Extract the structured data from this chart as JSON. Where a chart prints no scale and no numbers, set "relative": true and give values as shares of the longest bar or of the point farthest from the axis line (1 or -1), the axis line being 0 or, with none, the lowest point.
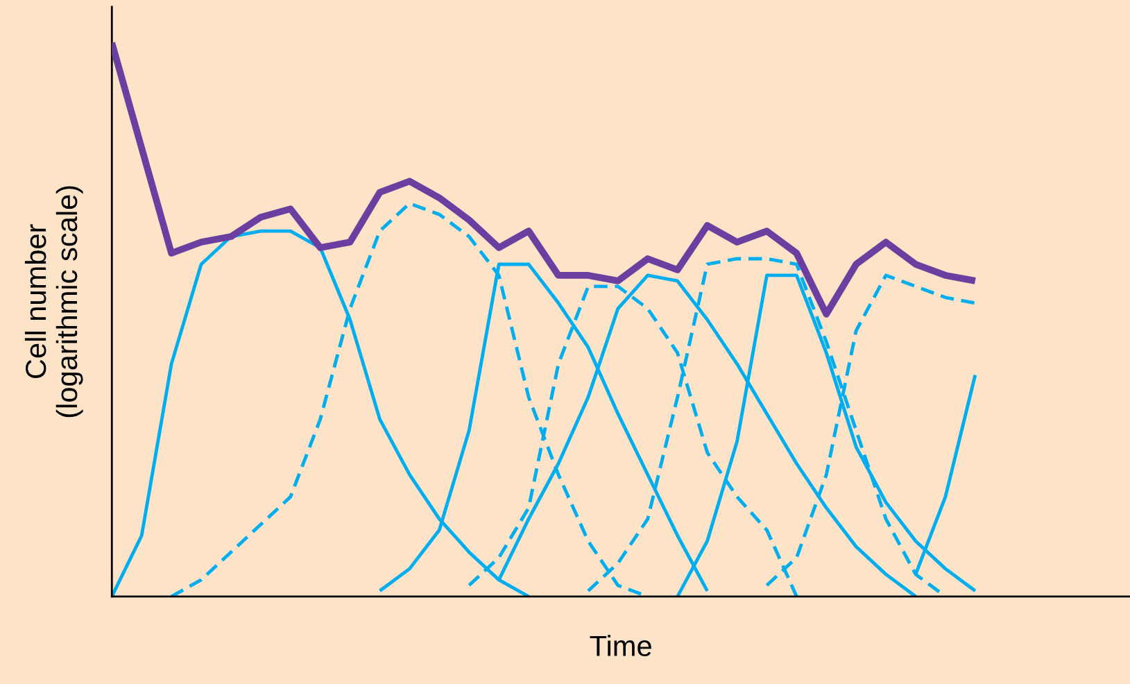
{
  "chart_data": {
    "type": "line",
    "relative": true,
    "xlabel": "Time",
    "ylabel": "Cell number\n(logarithmic scale)",
    "legend": false,
    "marker": "none",
    "categories": [
      null,
      null,
      null,
      null,
      null,
      null,
      null,
      null,
      null,
      null,
      null,
      null,
      null,
      null,
      null,
      null,
      null,
      null,
      null,
      null,
      null,
      null,
      null,
      null,
      null,
      null,
      null,
      null,
      null,
      null,
      null,
      null,
      null,
      null,
      null
    ],
    "series": [
      {
        "color": "#6a3fa0",
        "line_style": "solid",
        "values": [
          1.0,
          0.81,
          0.62,
          0.64,
          0.65,
          0.685,
          0.7,
          0.63,
          0.64,
          0.73,
          0.75,
          0.72,
          0.68,
          0.63,
          0.66,
          0.58,
          0.58,
          0.57,
          0.61,
          0.59,
          0.67,
          0.64,
          0.66,
          0.62,
          0.51,
          0.6,
          0.64,
          0.6,
          0.58,
          0.57,
          null,
          null,
          null,
          null,
          null
        ]
      },
      {
        "color": "#00aeef",
        "line_style": "solid",
        "values": [
          0,
          0.11,
          0.42,
          0.6,
          0.65,
          0.66,
          0.66,
          0.63,
          0.5,
          0.32,
          0.22,
          0.14,
          0.08,
          0.03,
          0,
          null,
          null,
          null,
          null,
          null,
          null,
          null,
          null,
          null,
          null,
          null,
          null,
          null,
          null,
          null,
          null,
          null,
          null,
          null,
          null
        ]
      },
      {
        "color": "#00aeef",
        "line_style": "dashed",
        "values": [
          null,
          null,
          0,
          0.03,
          0.08,
          0.13,
          0.18,
          0.32,
          0.52,
          0.66,
          0.71,
          0.69,
          0.65,
          0.58,
          0.36,
          0.22,
          0.1,
          0.02,
          0,
          null,
          null,
          null,
          null,
          null,
          null,
          null,
          null,
          null,
          null,
          null,
          null,
          null,
          null,
          null,
          null
        ]
      },
      {
        "color": "#00aeef",
        "line_style": "solid",
        "values": [
          null,
          null,
          null,
          null,
          null,
          null,
          null,
          null,
          null,
          0.01,
          0.05,
          0.12,
          0.3,
          0.6,
          0.6,
          0.53,
          0.45,
          0.33,
          0.22,
          0.11,
          0.01,
          null,
          null,
          null,
          null,
          null,
          null,
          null,
          null,
          null,
          null,
          null,
          null,
          null,
          null
        ]
      },
      {
        "color": "#00aeef",
        "line_style": "dashed",
        "values": [
          null,
          null,
          null,
          null,
          null,
          null,
          null,
          null,
          null,
          null,
          null,
          null,
          0.02,
          0.07,
          0.16,
          0.42,
          0.56,
          0.56,
          0.52,
          0.44,
          0.26,
          0.18,
          0.12,
          0,
          null,
          null,
          null,
          null,
          null,
          null,
          null,
          null,
          null,
          null,
          null
        ]
      },
      {
        "color": "#00aeef",
        "line_style": "solid",
        "values": [
          null,
          null,
          null,
          null,
          null,
          null,
          null,
          null,
          null,
          null,
          null,
          null,
          null,
          0.03,
          0.14,
          0.24,
          0.36,
          0.52,
          0.58,
          0.57,
          0.5,
          0.42,
          0.33,
          0.24,
          0.16,
          0.09,
          0.04,
          0,
          null,
          null,
          null,
          null,
          null,
          null,
          null
        ]
      },
      {
        "color": "#00aeef",
        "line_style": "dashed",
        "values": [
          null,
          null,
          null,
          null,
          null,
          null,
          null,
          null,
          null,
          null,
          null,
          null,
          null,
          null,
          null,
          null,
          0.01,
          0.06,
          0.14,
          0.36,
          0.6,
          0.61,
          0.61,
          0.6,
          0.46,
          0.3,
          0.14,
          0.04,
          0,
          null,
          null,
          null,
          null,
          null,
          null
        ]
      },
      {
        "color": "#00aeef",
        "line_style": "solid",
        "values": [
          null,
          null,
          null,
          null,
          null,
          null,
          null,
          null,
          null,
          null,
          null,
          null,
          null,
          null,
          null,
          null,
          null,
          null,
          null,
          0,
          0.1,
          0.28,
          0.58,
          0.58,
          0.44,
          0.27,
          0.17,
          0.1,
          0.05,
          0.01,
          null,
          null,
          null,
          null,
          null
        ]
      },
      {
        "color": "#00aeef",
        "line_style": "dashed",
        "values": [
          null,
          null,
          null,
          null,
          null,
          null,
          null,
          null,
          null,
          null,
          null,
          null,
          null,
          null,
          null,
          null,
          null,
          null,
          null,
          null,
          null,
          null,
          0.02,
          0.07,
          0.22,
          0.48,
          0.58,
          0.56,
          0.54,
          0.53,
          null,
          null,
          null,
          null,
          null
        ]
      },
      {
        "color": "#00aeef",
        "line_style": "solid",
        "values": [
          null,
          null,
          null,
          null,
          null,
          null,
          null,
          null,
          null,
          null,
          null,
          null,
          null,
          null,
          null,
          null,
          null,
          null,
          null,
          null,
          null,
          null,
          null,
          null,
          null,
          null,
          null,
          0.04,
          0.18,
          0.4,
          null,
          null,
          null,
          null,
          null
        ]
      }
    ]
  }
}
